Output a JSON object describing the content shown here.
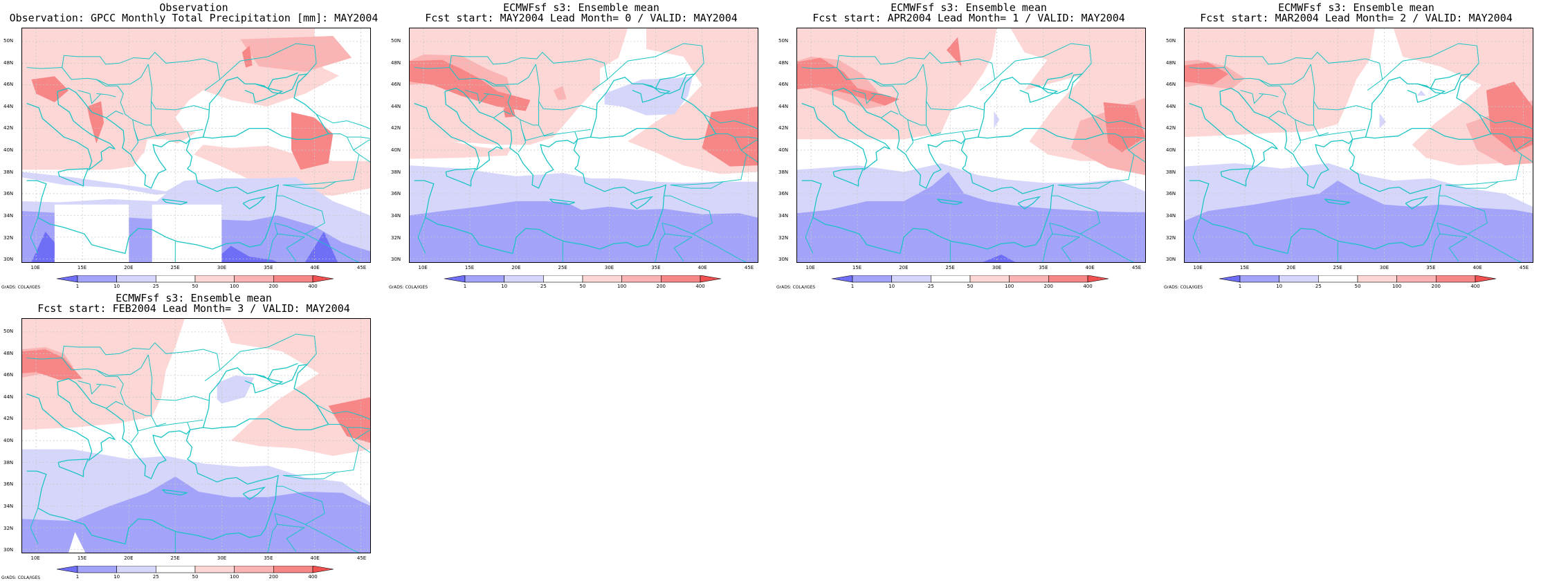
{
  "panels": [
    {
      "title1": "Observation",
      "title2": "Observation: GPCC Monthly Total Precipitation [mm]: MAY2004",
      "variant": "obs"
    },
    {
      "title1": "ECMWFsf s3: Ensemble mean",
      "title2": "Fcst start: MAY2004  Lead Month= 0 / VALID: MAY2004",
      "variant": "lead0"
    },
    {
      "title1": "ECMWFsf s3: Ensemble mean",
      "title2": "Fcst start: APR2004  Lead Month= 1 / VALID: MAY2004",
      "variant": "lead1"
    },
    {
      "title1": "ECMWFsf s3: Ensemble mean",
      "title2": "Fcst start: MAR2004  Lead Month= 2 / VALID: MAY2004",
      "variant": "lead2"
    },
    {
      "title1": "ECMWFsf s3: Ensemble mean",
      "title2": "Fcst start: FEB2004  Lead Month= 3 / VALID: MAY2004",
      "variant": "lead3"
    }
  ],
  "axes": {
    "lat_labels": [
      "50N",
      "48N",
      "46N",
      "44N",
      "42N",
      "40N",
      "38N",
      "36N",
      "34N",
      "32N",
      "30N"
    ],
    "lat_values": [
      50,
      48,
      46,
      44,
      42,
      40,
      38,
      36,
      34,
      32,
      30
    ],
    "lon_labels": [
      "10E",
      "15E",
      "20E",
      "25E",
      "30E",
      "35E",
      "40E",
      "45E"
    ],
    "lon_values": [
      10,
      15,
      20,
      25,
      30,
      35,
      40,
      45
    ],
    "lon_range": [
      8.5,
      46
    ],
    "lat_range": [
      29.7,
      51.2
    ]
  },
  "colorbar": {
    "labels": [
      "1",
      "10",
      "25",
      "50",
      "100",
      "200",
      "400"
    ],
    "colors": [
      "#6e6ef7",
      "#a3a3f9",
      "#d6d6fb",
      "#ffffff",
      "#fdd6d6",
      "#fbb4b4",
      "#f78686",
      "#f05050"
    ]
  },
  "credit": "GrADS: COLA/IGES",
  "colors": {
    "coast": "#19c4c4",
    "grid": "#c8c8c8"
  }
}
